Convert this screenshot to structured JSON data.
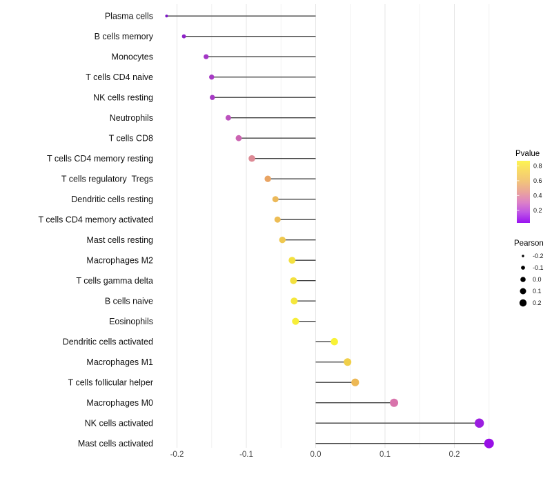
{
  "chart_data": {
    "type": "lollipop",
    "orientation": "horizontal",
    "title": "",
    "xlabel": "",
    "ylabel": "",
    "x_axis": {
      "tick_labels": [
        "-0.2",
        "-0.1",
        "0.0",
        "0.1",
        "0.2"
      ],
      "tick_values": [
        -0.2,
        -0.1,
        0.0,
        0.1,
        0.2
      ],
      "range": [
        -0.226,
        0.272
      ],
      "minor_step": 0.05,
      "grid": "vertical-only"
    },
    "rows": [
      {
        "label": "Plasma cells",
        "pearson": -0.215,
        "color": "#7d17c6",
        "radius": 2.0
      },
      {
        "label": "B cells memory",
        "pearson": -0.19,
        "color": "#8e22c8",
        "radius": 2.9
      },
      {
        "label": "Monocytes",
        "pearson": -0.158,
        "color": "#a336c6",
        "radius": 3.6
      },
      {
        "label": "T cells CD4 naive",
        "pearson": -0.15,
        "color": "#a63ac4",
        "radius": 3.7
      },
      {
        "label": "NK cells resting",
        "pearson": -0.149,
        "color": "#a63ac4",
        "radius": 3.7
      },
      {
        "label": "Neutrophils",
        "pearson": -0.126,
        "color": "#bc52be",
        "radius": 4.0
      },
      {
        "label": "T cells CD8",
        "pearson": -0.111,
        "color": "#cc64b2",
        "radius": 4.4
      },
      {
        "label": "T cells CD4 memory resting",
        "pearson": -0.092,
        "color": "#dd8a95",
        "radius": 4.8
      },
      {
        "label": "T cells regulatory  Tregs",
        "pearson": -0.069,
        "color": "#e9a463",
        "radius": 4.7
      },
      {
        "label": "Dendritic cells resting",
        "pearson": -0.058,
        "color": "#ecb95a",
        "radius": 4.5
      },
      {
        "label": "T cells CD4 memory activated",
        "pearson": -0.055,
        "color": "#edbd55",
        "radius": 4.5
      },
      {
        "label": "Mast cells resting",
        "pearson": -0.048,
        "color": "#efc84f",
        "radius": 4.7
      },
      {
        "label": "Macrophages M2",
        "pearson": -0.034,
        "color": "#f3e03f",
        "radius": 5.0
      },
      {
        "label": "T cells gamma delta",
        "pearson": -0.032,
        "color": "#f3e03f",
        "radius": 5.0
      },
      {
        "label": "B cells naive",
        "pearson": -0.031,
        "color": "#f5e73c",
        "radius": 5.0
      },
      {
        "label": "Eosinophils",
        "pearson": -0.029,
        "color": "#f7ee39",
        "radius": 5.1
      },
      {
        "label": "Dendritic cells activated",
        "pearson": 0.027,
        "color": "#f8f236",
        "radius": 5.3
      },
      {
        "label": "Macrophages M1",
        "pearson": 0.046,
        "color": "#f0cf49",
        "radius": 5.5
      },
      {
        "label": "T cells follicular helper",
        "pearson": 0.057,
        "color": "#edb854",
        "radius": 5.6
      },
      {
        "label": "Macrophages M0",
        "pearson": 0.113,
        "color": "#d873ab",
        "radius": 6.0
      },
      {
        "label": "NK cells activated",
        "pearson": 0.236,
        "color": "#9b1ee0",
        "radius": 6.7
      },
      {
        "label": "Mast cells activated",
        "pearson": 0.25,
        "color": "#980fe6",
        "radius": 7.0
      }
    ],
    "legends": {
      "pvalue": {
        "title": "Pvalue",
        "tick_labels": [
          "0.8",
          "0.6",
          "0.4",
          "0.2"
        ],
        "tick_values": [
          0.8,
          0.6,
          0.4,
          0.2
        ],
        "domain": [
          0.03,
          0.87
        ],
        "gradient_top_to_bottom": [
          "#fdf452",
          "#f8da66",
          "#f2c47a",
          "#eaa59b",
          "#dd82c6",
          "#bf55e6",
          "#9913f0"
        ]
      },
      "pearson": {
        "title": "Pearson",
        "items": [
          {
            "label": "-0.2",
            "radius": 1.7
          },
          {
            "label": "-0.1",
            "radius": 2.9
          },
          {
            "label": "0.0",
            "radius": 3.8
          },
          {
            "label": "0.1",
            "radius": 4.5
          },
          {
            "label": "0.2",
            "radius": 5.2
          }
        ],
        "dot_color": "#000000"
      }
    },
    "style_colors": {
      "stem": "#3f3f3f",
      "grid_major": "#e5e5e5",
      "grid_minor": "#f2f2f2",
      "axis_text": "#4a4a4a",
      "label_text": "#111111"
    }
  }
}
